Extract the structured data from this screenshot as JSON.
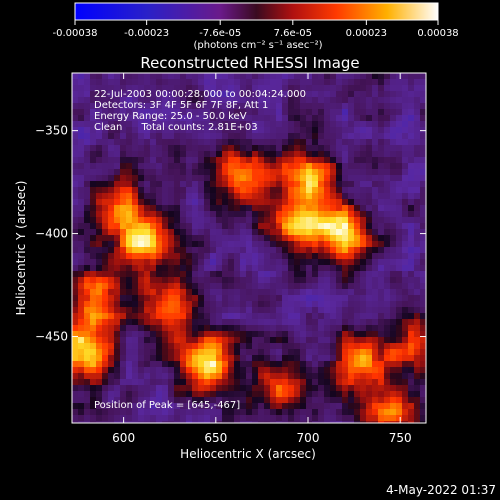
{
  "colorbar": {
    "tick_labels": [
      "-0.00038",
      "-0.00023",
      "-7.6e-05",
      "7.6e-05",
      "0.00023",
      "0.00038"
    ],
    "tick_values": [
      -0.00038,
      -0.00023,
      -7.6e-05,
      7.6e-05,
      0.00023,
      0.00038
    ],
    "range": [
      -0.00038,
      0.00038
    ],
    "units_label": "(photons cm⁻² s⁻¹ asec⁻²)",
    "colormap": [
      "#0000ff",
      "#2a20c0",
      "#5a2a96",
      "#8a1a1a",
      "#ff2a00",
      "#ff8c00",
      "#ffd200",
      "#ffffff"
    ]
  },
  "plot": {
    "title": "Reconstructed RHESSI Image",
    "annotation_lines": [
      "22-Jul-2003 00:00:28.000 to 00:04:24.000",
      "Detectors: 3F 4F 5F 6F 7F 8F, Att 1",
      "Energy Range: 25.0 - 50.0 keV",
      "Clean      Total counts: 2.81E+03"
    ],
    "peak_label": "Position of Peak = [645,-467]",
    "footer_timestamp": "4-May-2022 01:37"
  },
  "chart_data": {
    "type": "heatmap",
    "title": "Reconstructed RHESSI Image",
    "xlabel": "Heliocentric X (arcsec)",
    "ylabel": "Heliocentric Y (arcsec)",
    "xlim": [
      572,
      764
    ],
    "ylim": [
      -492,
      -322
    ],
    "x_ticks": [
      600,
      650,
      700,
      750
    ],
    "y_ticks": [
      -450,
      -400,
      -350
    ],
    "z_range": [
      -0.00038,
      0.00038
    ],
    "peak": [
      645,
      -467
    ],
    "bright_regions": [
      {
        "x": 645,
        "y": -462,
        "level": 0.95
      },
      {
        "x": 578,
        "y": -458,
        "level": 1.0
      },
      {
        "x": 610,
        "y": -405,
        "level": 0.85
      },
      {
        "x": 665,
        "y": -372,
        "level": 0.8
      },
      {
        "x": 720,
        "y": -400,
        "level": 0.9
      },
      {
        "x": 695,
        "y": -395,
        "level": 0.8
      },
      {
        "x": 700,
        "y": -372,
        "level": 0.7
      },
      {
        "x": 585,
        "y": -432,
        "level": 0.75
      },
      {
        "x": 625,
        "y": -435,
        "level": 0.65
      },
      {
        "x": 730,
        "y": -462,
        "level": 0.75
      },
      {
        "x": 745,
        "y": -488,
        "level": 0.6
      },
      {
        "x": 685,
        "y": -475,
        "level": 0.55
      },
      {
        "x": 598,
        "y": -385,
        "level": 0.55
      },
      {
        "x": 762,
        "y": -455,
        "level": 0.6
      }
    ]
  }
}
